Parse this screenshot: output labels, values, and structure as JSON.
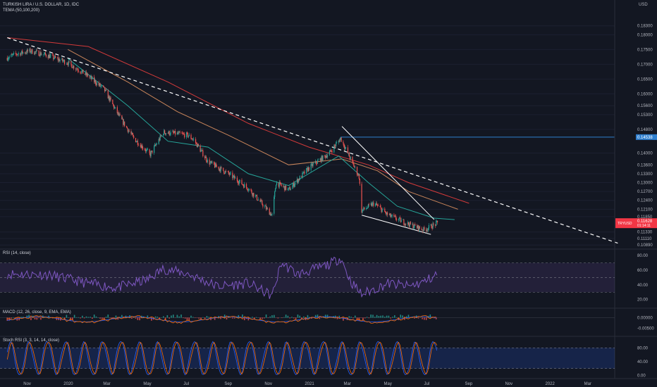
{
  "chart_title": "TURKISH LIRA / U.S. DOLLAR, 1D, IDC",
  "currency": "USD",
  "colors": {
    "background": "#131722",
    "up": "#26a69a",
    "down": "#ef5350",
    "tema_fast": "#26a69a",
    "tema_mid": "#c9855a",
    "tema_slow": "#d33a3a",
    "trendline": "#ffffff",
    "resistance": "#2f7fcf",
    "rsi": "#7e57c2",
    "stoch_k": "#2962ff",
    "stoch_d": "#ff6d00",
    "price_label": "#f23645"
  },
  "chart_data": [
    {
      "type": "candlestick",
      "title": "TURKISH LIRA / U.S. DOLLAR, 1D, IDC",
      "indicator_label": "TEMA (50,100,200)",
      "x_ticks": [
        "Nov",
        "2020",
        "Mar",
        "May",
        "Jul",
        "Sep",
        "Nov",
        "2021",
        "Mar",
        "May",
        "Jul",
        "Sep",
        "Nov",
        "2022",
        "Mar"
      ],
      "y_ticks": [
        "0.18300",
        "0.18000",
        "0.17500",
        "0.17000",
        "0.16500",
        "0.16000",
        "0.15600",
        "0.15300",
        "0.14800",
        "0.14000",
        "0.13600",
        "0.13300",
        "0.13000",
        "0.12700",
        "0.12400",
        "0.12100",
        "0.11850",
        "0.11330",
        "0.11110",
        "0.10890"
      ],
      "ylim": [
        0.108,
        0.1865
      ],
      "last_price": "0.11628",
      "last_label": "TRYUSD",
      "countdown": "01:14:11",
      "resistance_level": "0.14538",
      "trendline": {
        "from": [
          "2019-10-01",
          0.179
        ],
        "to": [
          "2022-04-15",
          0.1095
        ]
      },
      "close_path": [
        [
          "2019-10-01",
          0.1722
        ],
        [
          "2019-10-15",
          0.1735
        ],
        [
          "2019-11-05",
          0.1745
        ],
        [
          "2019-12-01",
          0.173
        ],
        [
          "2020-01-01",
          0.1705
        ],
        [
          "2020-02-01",
          0.166
        ],
        [
          "2020-02-25",
          0.1615
        ],
        [
          "2020-03-20",
          0.152
        ],
        [
          "2020-04-10",
          0.145
        ],
        [
          "2020-05-05",
          0.1395
        ],
        [
          "2020-05-25",
          0.147
        ],
        [
          "2020-06-15",
          0.1465
        ],
        [
          "2020-07-01",
          0.146
        ],
        [
          "2020-07-10",
          0.1445
        ],
        [
          "2020-08-01",
          0.137
        ],
        [
          "2020-09-01",
          0.133
        ],
        [
          "2020-10-01",
          0.128
        ],
        [
          "2020-11-06",
          0.119
        ],
        [
          "2020-11-12",
          0.13
        ],
        [
          "2020-12-01",
          0.1275
        ],
        [
          "2021-01-01",
          0.135
        ],
        [
          "2021-02-01",
          0.14
        ],
        [
          "2021-02-18",
          0.145
        ],
        [
          "2021-03-05",
          0.138
        ],
        [
          "2021-03-18",
          0.132
        ],
        [
          "2021-03-22",
          0.1205
        ],
        [
          "2021-04-10",
          0.123
        ],
        [
          "2021-05-01",
          0.119
        ],
        [
          "2021-06-01",
          0.116
        ],
        [
          "2021-06-25",
          0.114
        ],
        [
          "2021-07-15",
          0.1163
        ]
      ],
      "tema_fast": [
        [
          "2020-01-01",
          0.172
        ],
        [
          "2020-04-01",
          0.156
        ],
        [
          "2020-06-01",
          0.144
        ],
        [
          "2020-08-01",
          0.142
        ],
        [
          "2020-10-01",
          0.133
        ],
        [
          "2020-12-01",
          0.129
        ],
        [
          "2021-02-15",
          0.139
        ],
        [
          "2021-04-01",
          0.13
        ],
        [
          "2021-05-15",
          0.122
        ],
        [
          "2021-07-10",
          0.118
        ],
        [
          "2021-08-10",
          0.1175
        ]
      ],
      "tema_mid": [
        [
          "2020-01-01",
          0.175
        ],
        [
          "2020-04-01",
          0.164
        ],
        [
          "2020-06-15",
          0.154
        ],
        [
          "2020-09-01",
          0.146
        ],
        [
          "2020-12-01",
          0.136
        ],
        [
          "2021-02-20",
          0.138
        ],
        [
          "2021-04-15",
          0.134
        ],
        [
          "2021-06-01",
          0.127
        ],
        [
          "2021-08-15",
          0.121
        ]
      ],
      "tema_slow": [
        [
          "2019-10-01",
          0.179
        ],
        [
          "2020-02-01",
          0.176
        ],
        [
          "2020-06-01",
          0.164
        ],
        [
          "2020-10-01",
          0.15
        ],
        [
          "2021-01-01",
          0.142
        ],
        [
          "2021-04-01",
          0.136
        ],
        [
          "2021-06-01",
          0.13
        ],
        [
          "2021-09-01",
          0.123
        ]
      ],
      "channel": {
        "upper": [
          [
            "2021-02-20",
            0.149
          ],
          [
            "2021-07-10",
            0.1175
          ]
        ],
        "lower": [
          [
            "2021-03-22",
            0.119
          ],
          [
            "2021-07-05",
            0.1125
          ]
        ]
      }
    },
    {
      "type": "line",
      "title": "RSI (14, close)",
      "ticks": [
        "80.00",
        "60.00",
        "40.00",
        "20.00"
      ],
      "ylim": [
        12,
        85
      ],
      "band": [
        30,
        70
      ],
      "path": [
        [
          "2019-10-01",
          55
        ],
        [
          "2019-12-01",
          54
        ],
        [
          "2020-02-01",
          42
        ],
        [
          "2020-03-15",
          36
        ],
        [
          "2020-05-01",
          47
        ],
        [
          "2020-05-25",
          62
        ],
        [
          "2020-07-01",
          55
        ],
        [
          "2020-08-15",
          38
        ],
        [
          "2020-10-01",
          42
        ],
        [
          "2020-11-06",
          25
        ],
        [
          "2020-11-20",
          70
        ],
        [
          "2020-12-15",
          54
        ],
        [
          "2021-02-01",
          68
        ],
        [
          "2021-02-18",
          77
        ],
        [
          "2021-03-05",
          45
        ],
        [
          "2021-03-22",
          27
        ],
        [
          "2021-05-01",
          42
        ],
        [
          "2021-06-01",
          38
        ],
        [
          "2021-06-25",
          44
        ],
        [
          "2021-07-15",
          55
        ]
      ]
    },
    {
      "type": "line",
      "title": "MACD (12, 26, close, 9, EMA, EMA)",
      "ticks": [
        "0.00000",
        "-0.00500"
      ],
      "ylim": [
        -0.008,
        0.003
      ]
    },
    {
      "type": "line",
      "title": "Stoch RSI (3, 3, 14, 14, close)",
      "ticks": [
        "80.00",
        "40.00",
        "0.00"
      ],
      "ylim": [
        -5,
        105
      ],
      "band": [
        20,
        80
      ]
    }
  ]
}
